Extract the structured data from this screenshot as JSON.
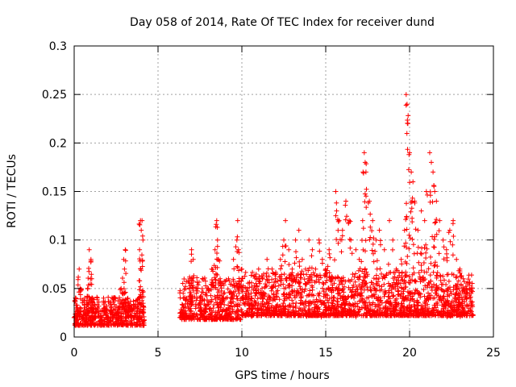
{
  "chart_data": {
    "type": "scatter",
    "title": "Day 058 of 2014, Rate Of TEC Index for receiver dund",
    "xlabel": "GPS time / hours",
    "ylabel": "ROTI / TECUs",
    "xlim": [
      0,
      25
    ],
    "ylim": [
      0,
      0.3
    ],
    "xticks": [
      0,
      5,
      10,
      15,
      20,
      25
    ],
    "xtick_labels": [
      "0",
      "5",
      "10",
      "15",
      "20",
      "25"
    ],
    "yticks": [
      0,
      0.05,
      0.1,
      0.15,
      0.2,
      0.25,
      0.3
    ],
    "ytick_labels": [
      "0",
      "0.05",
      "0.1",
      "0.15",
      "0.2",
      "0.25",
      "0.3"
    ],
    "grid": true,
    "marker": "plus",
    "color": "#ff0000",
    "data_gap_hours": [
      4.2,
      6.3
    ],
    "series": [
      {
        "name": "ROTI",
        "x": [
          0.05,
          0.1,
          0.2,
          0.3,
          0.35,
          0.5,
          0.6,
          0.8,
          0.9,
          1.0,
          1.05,
          1.1,
          1.2,
          1.4,
          1.6,
          1.8,
          2.0,
          2.2,
          2.4,
          2.6,
          2.8,
          2.95,
          3.0,
          3.05,
          3.2,
          3.4,
          3.6,
          3.8,
          3.9,
          3.95,
          4.0,
          4.05,
          4.1,
          6.5,
          6.7,
          6.9,
          7.0,
          7.1,
          7.3,
          7.5,
          7.8,
          8.0,
          8.2,
          8.4,
          8.5,
          8.55,
          8.6,
          8.7,
          8.9,
          9.2,
          9.5,
          9.7,
          9.75,
          9.8,
          10.0,
          10.3,
          10.6,
          10.9,
          11.0,
          11.2,
          11.5,
          11.8,
          12.0,
          12.3,
          12.5,
          12.6,
          12.8,
          13.0,
          13.2,
          13.4,
          13.6,
          13.8,
          14.0,
          14.2,
          14.4,
          14.6,
          14.8,
          15.0,
          15.2,
          15.4,
          15.6,
          15.65,
          15.8,
          16.0,
          16.2,
          16.4,
          16.5,
          16.8,
          17.0,
          17.2,
          17.3,
          17.35,
          17.4,
          17.6,
          17.8,
          18.0,
          18.2,
          18.5,
          18.8,
          19.0,
          19.2,
          19.5,
          19.7,
          19.8,
          19.85,
          19.9,
          20.0,
          20.1,
          20.2,
          20.3,
          20.5,
          20.7,
          20.9,
          21.0,
          21.2,
          21.3,
          21.4,
          21.5,
          21.6,
          21.8,
          22.0,
          22.2,
          22.4,
          22.6,
          22.8,
          23.0,
          23.2,
          23.4,
          23.6
        ],
        "y": [
          0.02,
          0.04,
          0.03,
          0.07,
          0.05,
          0.02,
          0.03,
          0.05,
          0.09,
          0.08,
          0.06,
          0.04,
          0.02,
          0.03,
          0.02,
          0.03,
          0.02,
          0.03,
          0.04,
          0.03,
          0.05,
          0.08,
          0.07,
          0.09,
          0.04,
          0.03,
          0.02,
          0.03,
          0.09,
          0.12,
          0.11,
          0.12,
          0.1,
          0.03,
          0.04,
          0.06,
          0.09,
          0.08,
          0.05,
          0.04,
          0.03,
          0.05,
          0.07,
          0.09,
          0.12,
          0.1,
          0.08,
          0.06,
          0.04,
          0.06,
          0.08,
          0.1,
          0.12,
          0.09,
          0.07,
          0.05,
          0.04,
          0.06,
          0.07,
          0.05,
          0.08,
          0.07,
          0.06,
          0.08,
          0.1,
          0.12,
          0.09,
          0.07,
          0.1,
          0.11,
          0.08,
          0.07,
          0.1,
          0.09,
          0.07,
          0.1,
          0.08,
          0.07,
          0.09,
          0.06,
          0.15,
          0.13,
          0.12,
          0.11,
          0.14,
          0.12,
          0.1,
          0.09,
          0.08,
          0.12,
          0.19,
          0.18,
          0.17,
          0.14,
          0.12,
          0.1,
          0.11,
          0.09,
          0.12,
          0.1,
          0.07,
          0.08,
          0.11,
          0.25,
          0.24,
          0.22,
          0.19,
          0.17,
          0.16,
          0.14,
          0.11,
          0.13,
          0.12,
          0.15,
          0.19,
          0.18,
          0.17,
          0.15,
          0.14,
          0.12,
          0.1,
          0.09,
          0.11,
          0.12,
          0.08,
          0.07,
          0.06,
          0.05,
          0.04
        ]
      }
    ]
  }
}
